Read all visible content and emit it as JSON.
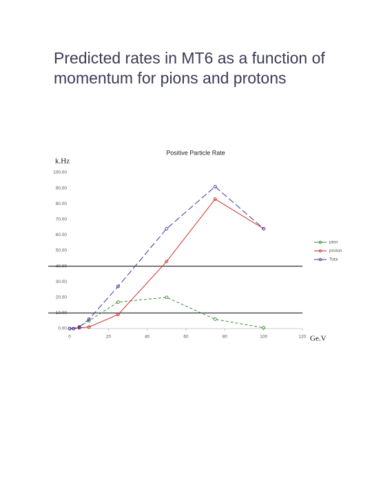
{
  "slide_title": "Predicted rates in MT6 as a function of momentum for pions and protons",
  "chart_data": {
    "type": "line",
    "title": "Positive Particle Rate",
    "ylabel": "k.Hz",
    "xlabel": "Ge.V",
    "x": [
      0,
      2,
      5,
      10,
      25,
      50,
      75,
      100
    ],
    "series": [
      {
        "name": "pion",
        "color": "#2e8b2e",
        "values": [
          0,
          0,
          1,
          5,
          17,
          20,
          6,
          0.5
        ]
      },
      {
        "name": "proton",
        "color": "#d42a2a",
        "values": [
          0,
          0,
          0.5,
          1,
          9,
          43,
          83,
          64
        ]
      },
      {
        "name": "Tota",
        "color": "#3535a5",
        "values": [
          0,
          0,
          1,
          6,
          27,
          64,
          91,
          64
        ]
      }
    ],
    "xlim": [
      0,
      120
    ],
    "xticks": [
      0,
      20,
      40,
      60,
      80,
      100,
      120
    ],
    "ylim": [
      0,
      100
    ],
    "yticks": [
      {
        "value": 0,
        "label": "0.00"
      },
      {
        "value": 10,
        "label": "10.00"
      },
      {
        "value": 20,
        "label": "20.00"
      },
      {
        "value": 30,
        "label": "30.00"
      },
      {
        "value": 40,
        "label": "40.00"
      },
      {
        "value": 50,
        "label": "50.00"
      },
      {
        "value": 60,
        "label": "60.00"
      },
      {
        "value": 70,
        "label": "70.00"
      },
      {
        "value": 80,
        "label": "80.00"
      },
      {
        "value": 90,
        "label": "90.00"
      },
      {
        "value": 100,
        "label": "100.00"
      }
    ]
  }
}
